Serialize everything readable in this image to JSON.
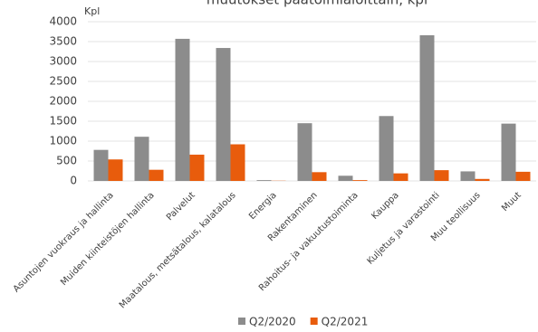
{
  "chart_data": {
    "type": "bar",
    "title": "muutokset päätoimialoittain, kpl",
    "y_label": "Kpl",
    "categories": [
      "Asuntojen vuokraus ja hallinta",
      "Muiden kiinteistöjen hallinta",
      "Palvelut",
      "Maatalous, metsätalous, kalatalous",
      "Energia",
      "Rakentaminen",
      "Rahoitus- ja vakuutustoiminta",
      "Kauppa",
      "Kuljetus ja varastointi",
      "Muu teollisuus",
      "Muut"
    ],
    "series": [
      {
        "name": "Q2/2020",
        "color": "#8c8c8c",
        "values": [
          780,
          1110,
          3570,
          3340,
          20,
          1450,
          130,
          1630,
          3660,
          240,
          1440
        ]
      },
      {
        "name": "Q2/2021",
        "color": "#e85c0c",
        "values": [
          540,
          280,
          660,
          920,
          5,
          220,
          20,
          190,
          270,
          50,
          230
        ]
      }
    ],
    "ylim": [
      0,
      4000
    ],
    "yticks": [
      0,
      500,
      1000,
      1500,
      2000,
      2500,
      3000,
      3500,
      4000
    ],
    "grid": true,
    "legend": "bottom"
  }
}
